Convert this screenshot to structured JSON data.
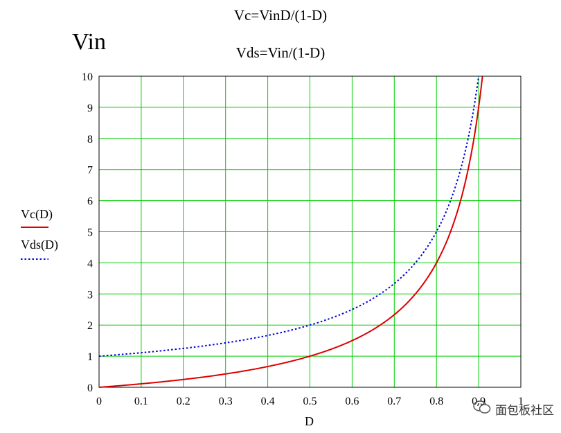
{
  "equations": {
    "vc": "Vc=VinD/(1-D)",
    "vds": "Vds=Vin/(1-D)"
  },
  "y_title": "Vin",
  "watermark": "面包板社区",
  "colors": {
    "vc": "#dd0000",
    "vds": "#0000dd",
    "grid": "#00cc00"
  },
  "chart_data": {
    "type": "line",
    "xlabel": "D",
    "ylabel": "Vin",
    "xlim": [
      0,
      1
    ],
    "ylim": [
      0,
      10
    ],
    "x_ticks": [
      "0",
      "0.1",
      "0.2",
      "0.3",
      "0.4",
      "0.5",
      "0.6",
      "0.7",
      "0.8",
      "0.9",
      "1"
    ],
    "y_ticks": [
      "0",
      "1",
      "2",
      "3",
      "4",
      "5",
      "6",
      "7",
      "8",
      "9",
      "10"
    ],
    "grid": true,
    "legend_position": "left",
    "series": [
      {
        "name": "Vc(D)",
        "style": "solid",
        "x": [
          0,
          0.1,
          0.2,
          0.3,
          0.4,
          0.5,
          0.6,
          0.7,
          0.75,
          0.8,
          0.85,
          0.88,
          0.9,
          0.909
        ],
        "values": [
          0,
          0.11,
          0.25,
          0.43,
          0.67,
          1.0,
          1.5,
          2.33,
          3.0,
          4.0,
          5.67,
          7.33,
          9.0,
          10.0
        ]
      },
      {
        "name": "Vds(D)",
        "style": "dotted",
        "x": [
          0,
          0.1,
          0.2,
          0.3,
          0.4,
          0.5,
          0.6,
          0.7,
          0.75,
          0.8,
          0.85,
          0.875,
          0.89,
          0.9
        ],
        "values": [
          1.0,
          1.11,
          1.25,
          1.43,
          1.67,
          2.0,
          2.5,
          3.33,
          4.0,
          5.0,
          6.67,
          8.0,
          9.09,
          10.0
        ]
      }
    ]
  }
}
